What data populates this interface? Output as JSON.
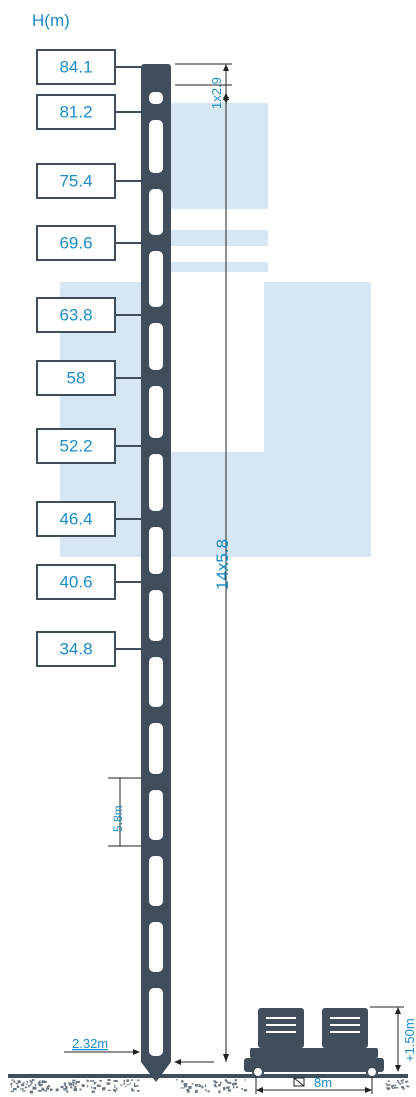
{
  "axis_title": "H(m)",
  "levels": [
    "84.1",
    "81.2",
    "75.4",
    "69.6",
    "63.8",
    "58",
    "52.2",
    "46.4",
    "40.6",
    "34.8"
  ],
  "dimensions": {
    "top_segment": "1x2.9",
    "main_span": "14x5.8",
    "module_height": "5.8m",
    "base_width": "2.32m",
    "foundation_size": "8m",
    "foundation_height": "+1.50m"
  },
  "colors": {
    "text": "#1a8cc8",
    "tower": "#3f4e5a",
    "watermark": "#d6e7f3",
    "box_border": "#3f4e5a"
  }
}
